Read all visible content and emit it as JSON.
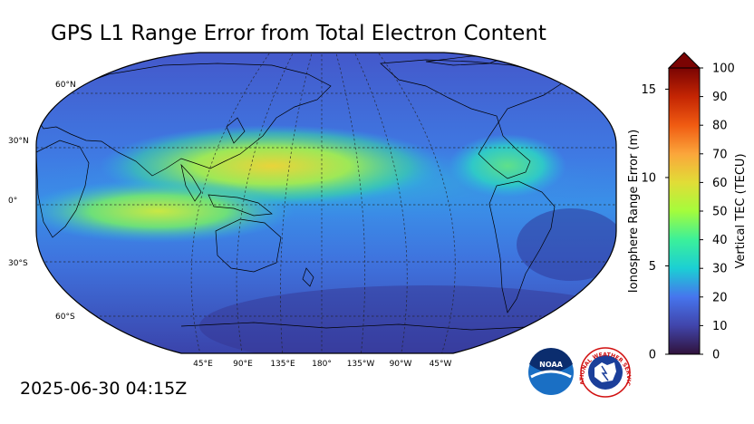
{
  "title": "GPS L1 Range Error from Total Electron Content",
  "timestamp": "2025-06-30 04:15Z",
  "map": {
    "lat_labels": [
      "60°N",
      "30°N",
      "0°",
      "30°S",
      "60°S"
    ],
    "lon_labels": [
      "45°E",
      "90°E",
      "135°E",
      "180°",
      "135°W",
      "90°W",
      "45°W"
    ]
  },
  "colorbar": {
    "left_axis_title": "Ionosphere Range Error (m)",
    "right_axis_title": "Vertical TEC (TECU)",
    "left_ticks": [
      "0",
      "5",
      "10",
      "15"
    ],
    "left_values": [
      0,
      5,
      10,
      15
    ],
    "right_ticks": [
      "0",
      "10",
      "20",
      "30",
      "40",
      "50",
      "60",
      "70",
      "80",
      "90",
      "100"
    ],
    "right_values": [
      0,
      10,
      20,
      30,
      40,
      50,
      60,
      70,
      80,
      90,
      100
    ],
    "vmin": 0,
    "vmax": 100,
    "range_error_max": 16.2
  },
  "logos": {
    "noaa_text": "NOAA",
    "nws_text": "NATIONAL WEATHER SERVICE"
  }
}
